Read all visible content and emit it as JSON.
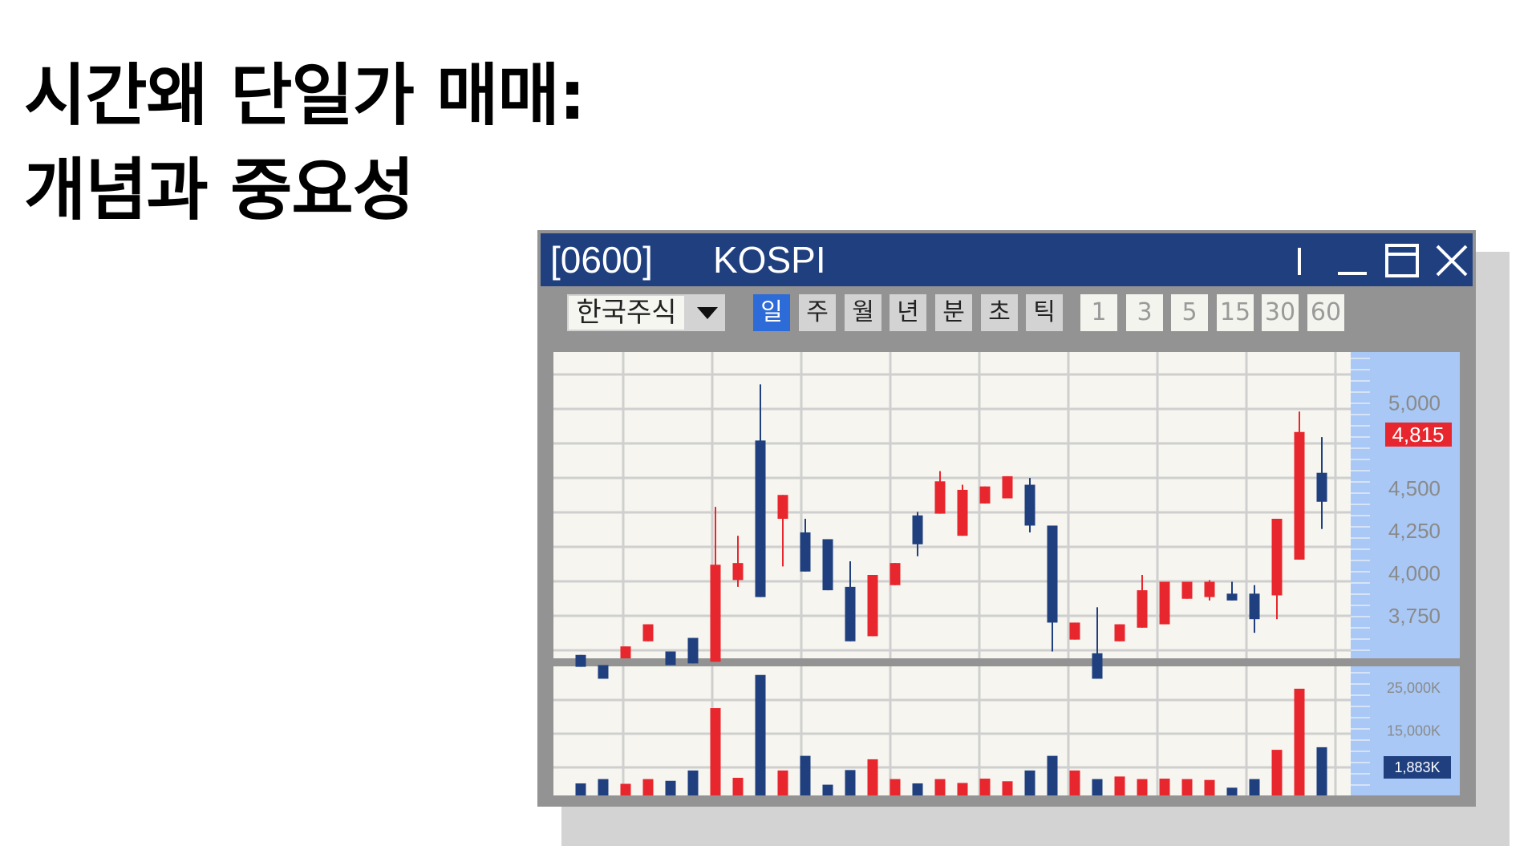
{
  "heading": {
    "line1": "시간왜 단일가 매매:",
    "line2": "개념과 중요성"
  },
  "window": {
    "code": "[0600]",
    "name": "KOSPI",
    "controls": [
      "cursor-icon",
      "minimize-icon",
      "maximize-icon",
      "close-icon"
    ]
  },
  "toolbar": {
    "market": "한국주식",
    "periods": [
      "일",
      "주",
      "월",
      "년",
      "분",
      "초",
      "틱"
    ],
    "active_period": "일",
    "minutes": [
      "1",
      "3",
      "5",
      "15",
      "30",
      "60"
    ]
  },
  "colors": {
    "up": "#e8262d",
    "down": "#1f3f7f",
    "titlebar": "#1f3f7f",
    "axis_panel": "#a9c8f5",
    "plot_bg": "#f6f5ef",
    "active_tab": "#2d6bd8"
  },
  "chart_data": [
    {
      "type": "candlestick",
      "title": "",
      "ylim": [
        3500,
        5300
      ],
      "yticks": [
        "5,000",
        "4,500",
        "4,250",
        "4,000",
        "3,750"
      ],
      "ytick_values": [
        5000,
        4500,
        4250,
        4000,
        3750
      ],
      "current": {
        "label": "4,815",
        "value": 4815
      },
      "candles": [
        {
          "o": 3520,
          "c": 3450,
          "h": 3520,
          "l": 3450
        },
        {
          "o": 3460,
          "c": 3380,
          "h": 3460,
          "l": 3380
        },
        {
          "o": 3500,
          "c": 3570,
          "h": 3570,
          "l": 3500
        },
        {
          "o": 3600,
          "c": 3700,
          "h": 3700,
          "l": 3600
        },
        {
          "o": 3540,
          "c": 3460,
          "h": 3540,
          "l": 3460
        },
        {
          "o": 3620,
          "c": 3470,
          "h": 3620,
          "l": 3470
        },
        {
          "o": 3480,
          "c": 4050,
          "h": 4390,
          "l": 3480
        },
        {
          "o": 3960,
          "c": 4060,
          "h": 4220,
          "l": 3920
        },
        {
          "o": 4780,
          "c": 3860,
          "h": 5110,
          "l": 3860
        },
        {
          "o": 4320,
          "c": 4460,
          "h": 4460,
          "l": 4040
        },
        {
          "o": 4240,
          "c": 4010,
          "h": 4320,
          "l": 4010
        },
        {
          "o": 4200,
          "c": 3900,
          "h": 4200,
          "l": 3900
        },
        {
          "o": 3920,
          "c": 3600,
          "h": 4070,
          "l": 3600
        },
        {
          "o": 3630,
          "c": 3990,
          "h": 3990,
          "l": 3630
        },
        {
          "o": 3930,
          "c": 4060,
          "h": 4060,
          "l": 3930
        },
        {
          "o": 4340,
          "c": 4170,
          "h": 4360,
          "l": 4100
        },
        {
          "o": 4350,
          "c": 4540,
          "h": 4600,
          "l": 4350
        },
        {
          "o": 4220,
          "c": 4490,
          "h": 4520,
          "l": 4220
        },
        {
          "o": 4410,
          "c": 4510,
          "h": 4510,
          "l": 4410
        },
        {
          "o": 4440,
          "c": 4570,
          "h": 4570,
          "l": 4440
        },
        {
          "o": 4520,
          "c": 4280,
          "h": 4560,
          "l": 4240
        },
        {
          "o": 4280,
          "c": 3710,
          "h": 4280,
          "l": 3540
        },
        {
          "o": 3610,
          "c": 3710,
          "h": 3710,
          "l": 3610
        },
        {
          "o": 3530,
          "c": 3380,
          "h": 3800,
          "l": 3380
        },
        {
          "o": 3600,
          "c": 3700,
          "h": 3700,
          "l": 3600
        },
        {
          "o": 3680,
          "c": 3900,
          "h": 3990,
          "l": 3680
        },
        {
          "o": 3700,
          "c": 3950,
          "h": 3950,
          "l": 3700
        },
        {
          "o": 3850,
          "c": 3950,
          "h": 3950,
          "l": 3850
        },
        {
          "o": 3860,
          "c": 3950,
          "h": 3960,
          "l": 3840
        },
        {
          "o": 3880,
          "c": 3840,
          "h": 3950,
          "l": 3840
        },
        {
          "o": 3880,
          "c": 3730,
          "h": 3930,
          "l": 3650
        },
        {
          "o": 3870,
          "c": 4320,
          "h": 4320,
          "l": 3730
        },
        {
          "o": 4080,
          "c": 4830,
          "h": 4950,
          "l": 4080
        },
        {
          "o": 4590,
          "c": 4420,
          "h": 4800,
          "l": 4260
        }
      ]
    },
    {
      "type": "bar",
      "title": "",
      "ylim": [
        0,
        30000
      ],
      "yticks": [
        "25,000K",
        "15,000K"
      ],
      "ytick_values": [
        25000,
        15000
      ],
      "current": {
        "label": "1,883K",
        "value": 1883
      },
      "values": [
        2800,
        3800,
        2700,
        3800,
        3400,
        5800,
        20300,
        4100,
        28000,
        5800,
        9200,
        2500,
        5900,
        8400,
        3800,
        2800,
        3800,
        2900,
        3900,
        3300,
        5800,
        9200,
        5800,
        3800,
        4400,
        3800,
        3900,
        3800,
        3600,
        1800,
        3800,
        10600,
        24800,
        11200
      ]
    }
  ]
}
